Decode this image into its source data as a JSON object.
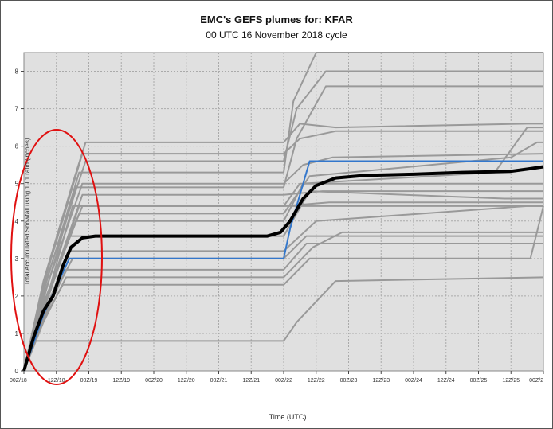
{
  "chart_data": {
    "type": "line",
    "title": "EMC's GEFS plumes for: KFAR",
    "subtitle": "00 UTC 16 November 2018 cycle",
    "xlabel": "Time (UTC)",
    "ylabel": "Total Accumulated Snowfall using 10:1 ratio (inches)",
    "x_ticks": [
      "00Z/18",
      "12Z/18",
      "00Z/19",
      "12Z/19",
      "00Z/20",
      "12Z/20",
      "00Z/21",
      "12Z/21",
      "00Z/22",
      "12Z/22",
      "00Z/23",
      "12Z/23",
      "00Z/24",
      "12Z/24",
      "00Z/25",
      "12Z/25",
      "00Z/2"
    ],
    "y_ticks": [
      0,
      1,
      2,
      3,
      4,
      5,
      6,
      7,
      8
    ],
    "xlim": [
      0,
      16
    ],
    "ylim": [
      0,
      8.5
    ],
    "grid": true,
    "colors": {
      "members": "#999999",
      "control": "#3377cc",
      "mean": "#000000",
      "annotation": "#e01010",
      "plot_bg": "#e0e0e0"
    },
    "series": [
      {
        "role": "member",
        "points": [
          [
            0,
            0
          ],
          [
            0.35,
            0.8
          ],
          [
            8,
            0.8
          ],
          [
            8.4,
            1.3
          ],
          [
            9.6,
            2.4
          ],
          [
            16,
            2.5
          ]
        ]
      },
      {
        "role": "member",
        "points": [
          [
            0,
            0
          ],
          [
            0.6,
            1.3
          ],
          [
            1.3,
            2.5
          ],
          [
            8,
            2.5
          ],
          [
            8.9,
            3.3
          ],
          [
            9.8,
            3.7
          ],
          [
            16,
            3.7
          ]
        ]
      },
      {
        "role": "member",
        "points": [
          [
            0,
            0
          ],
          [
            0.6,
            1.4
          ],
          [
            1.3,
            2.7
          ],
          [
            8,
            2.7
          ],
          [
            8.7,
            3.4
          ],
          [
            16,
            3.4
          ]
        ]
      },
      {
        "role": "member",
        "points": [
          [
            0,
            0
          ],
          [
            0.6,
            1.5
          ],
          [
            1.5,
            3.0
          ],
          [
            8,
            3.0
          ],
          [
            8.7,
            3.6
          ],
          [
            16,
            3.6
          ]
        ]
      },
      {
        "role": "member",
        "points": [
          [
            0,
            0
          ],
          [
            0.6,
            1.5
          ],
          [
            1.4,
            3.2
          ],
          [
            8,
            3.2
          ],
          [
            9.0,
            4.0
          ],
          [
            15.5,
            4.4
          ],
          [
            16,
            4.4
          ]
        ]
      },
      {
        "role": "member",
        "points": [
          [
            0,
            0
          ],
          [
            0.6,
            1.6
          ],
          [
            1.7,
            4.4
          ],
          [
            8,
            4.4
          ],
          [
            9.4,
            4.5
          ],
          [
            16,
            4.5
          ]
        ]
      },
      {
        "role": "member",
        "points": [
          [
            0,
            0
          ],
          [
            0.6,
            1.7
          ],
          [
            1.8,
            4.7
          ],
          [
            8,
            4.7
          ],
          [
            9.2,
            4.8
          ],
          [
            16,
            4.8
          ]
        ]
      },
      {
        "role": "member",
        "points": [
          [
            0,
            0
          ],
          [
            0.6,
            1.8
          ],
          [
            1.8,
            4.4
          ],
          [
            8,
            4.4
          ],
          [
            8.5,
            5.0
          ],
          [
            9.5,
            5.0
          ],
          [
            16,
            5.0
          ]
        ]
      },
      {
        "role": "member",
        "points": [
          [
            0,
            0
          ],
          [
            0.6,
            2.0
          ],
          [
            1.8,
            5.0
          ],
          [
            8,
            5.0
          ],
          [
            8.6,
            5.5
          ],
          [
            9.5,
            5.7
          ],
          [
            16,
            5.8
          ]
        ]
      },
      {
        "role": "member",
        "points": [
          [
            0,
            0
          ],
          [
            0.6,
            2.3
          ],
          [
            1.8,
            5.8
          ],
          [
            8,
            5.8
          ],
          [
            8.5,
            6.2
          ],
          [
            9.6,
            6.4
          ],
          [
            16,
            6.4
          ]
        ]
      },
      {
        "role": "member",
        "points": [
          [
            0,
            0
          ],
          [
            0.6,
            2.4
          ],
          [
            1.5,
            5.0
          ],
          [
            1.9,
            6.1
          ],
          [
            8,
            6.1
          ],
          [
            8.5,
            6.6
          ],
          [
            9.6,
            6.5
          ],
          [
            15.5,
            6.6
          ],
          [
            16,
            6.6
          ]
        ]
      },
      {
        "role": "member",
        "points": [
          [
            0,
            0
          ],
          [
            0.6,
            1.9
          ],
          [
            1.6,
            4.9
          ],
          [
            8,
            4.9
          ],
          [
            8.4,
            6.2
          ],
          [
            9.3,
            7.6
          ],
          [
            16,
            7.6
          ]
        ]
      },
      {
        "role": "member",
        "points": [
          [
            0,
            0
          ],
          [
            0.6,
            2.2
          ],
          [
            1.9,
            5.6
          ],
          [
            8,
            5.6
          ],
          [
            8.4,
            7.0
          ],
          [
            9.3,
            8.0
          ],
          [
            16,
            8.0
          ]
        ]
      },
      {
        "role": "member",
        "points": [
          [
            0,
            0
          ],
          [
            0.6,
            2.1
          ],
          [
            1.7,
            5.3
          ],
          [
            8,
            5.3
          ],
          [
            8.3,
            7.2
          ],
          [
            9.0,
            8.7
          ],
          [
            16,
            8.7
          ]
        ]
      },
      {
        "role": "member",
        "points": [
          [
            0,
            0
          ],
          [
            0.6,
            1.6
          ],
          [
            1.5,
            4.4
          ],
          [
            8,
            4.4
          ],
          [
            9.4,
            4.4
          ],
          [
            16,
            4.4
          ]
        ]
      },
      {
        "role": "member",
        "points": [
          [
            0,
            0
          ],
          [
            0.6,
            1.6
          ],
          [
            1.4,
            3.6
          ],
          [
            8,
            3.6
          ],
          [
            8.8,
            4.8
          ],
          [
            14.8,
            4.6
          ],
          [
            16,
            4.6
          ]
        ]
      },
      {
        "role": "member",
        "points": [
          [
            0,
            0
          ],
          [
            0.6,
            1.7
          ],
          [
            1.6,
            4.0
          ],
          [
            8,
            4.0
          ],
          [
            8.6,
            5.0
          ],
          [
            14.5,
            5.3
          ],
          [
            15.5,
            6.5
          ],
          [
            16,
            6.5
          ]
        ]
      },
      {
        "role": "member",
        "points": [
          [
            0,
            0
          ],
          [
            0.6,
            1.8
          ],
          [
            1.7,
            4.2
          ],
          [
            8,
            4.2
          ],
          [
            8.8,
            5.2
          ],
          [
            15,
            5.7
          ],
          [
            15.8,
            6.1
          ],
          [
            16,
            6.1
          ]
        ]
      },
      {
        "role": "member",
        "points": [
          [
            0,
            0
          ],
          [
            0.5,
            1.2
          ],
          [
            1.2,
            2.3
          ],
          [
            8,
            2.3
          ],
          [
            8.8,
            3.0
          ],
          [
            15.6,
            3.0
          ],
          [
            16,
            4.4
          ]
        ]
      },
      {
        "role": "control",
        "points": [
          [
            0,
            0
          ],
          [
            0.6,
            1.5
          ],
          [
            1.4,
            3.0
          ],
          [
            8,
            3.0
          ],
          [
            8.2,
            3.8
          ],
          [
            8.8,
            5.6
          ],
          [
            16,
            5.6
          ]
        ]
      },
      {
        "role": "mean",
        "points": [
          [
            0,
            0
          ],
          [
            0.3,
            0.9
          ],
          [
            0.6,
            1.6
          ],
          [
            0.9,
            2.0
          ],
          [
            1.2,
            2.8
          ],
          [
            1.45,
            3.3
          ],
          [
            1.8,
            3.55
          ],
          [
            2.2,
            3.6
          ],
          [
            7.5,
            3.6
          ],
          [
            7.9,
            3.7
          ],
          [
            8.2,
            4.0
          ],
          [
            8.6,
            4.6
          ],
          [
            9.0,
            4.95
          ],
          [
            9.6,
            5.15
          ],
          [
            10.5,
            5.22
          ],
          [
            12,
            5.25
          ],
          [
            13.5,
            5.3
          ],
          [
            15,
            5.33
          ],
          [
            15.6,
            5.4
          ],
          [
            16,
            5.45
          ]
        ]
      }
    ]
  }
}
